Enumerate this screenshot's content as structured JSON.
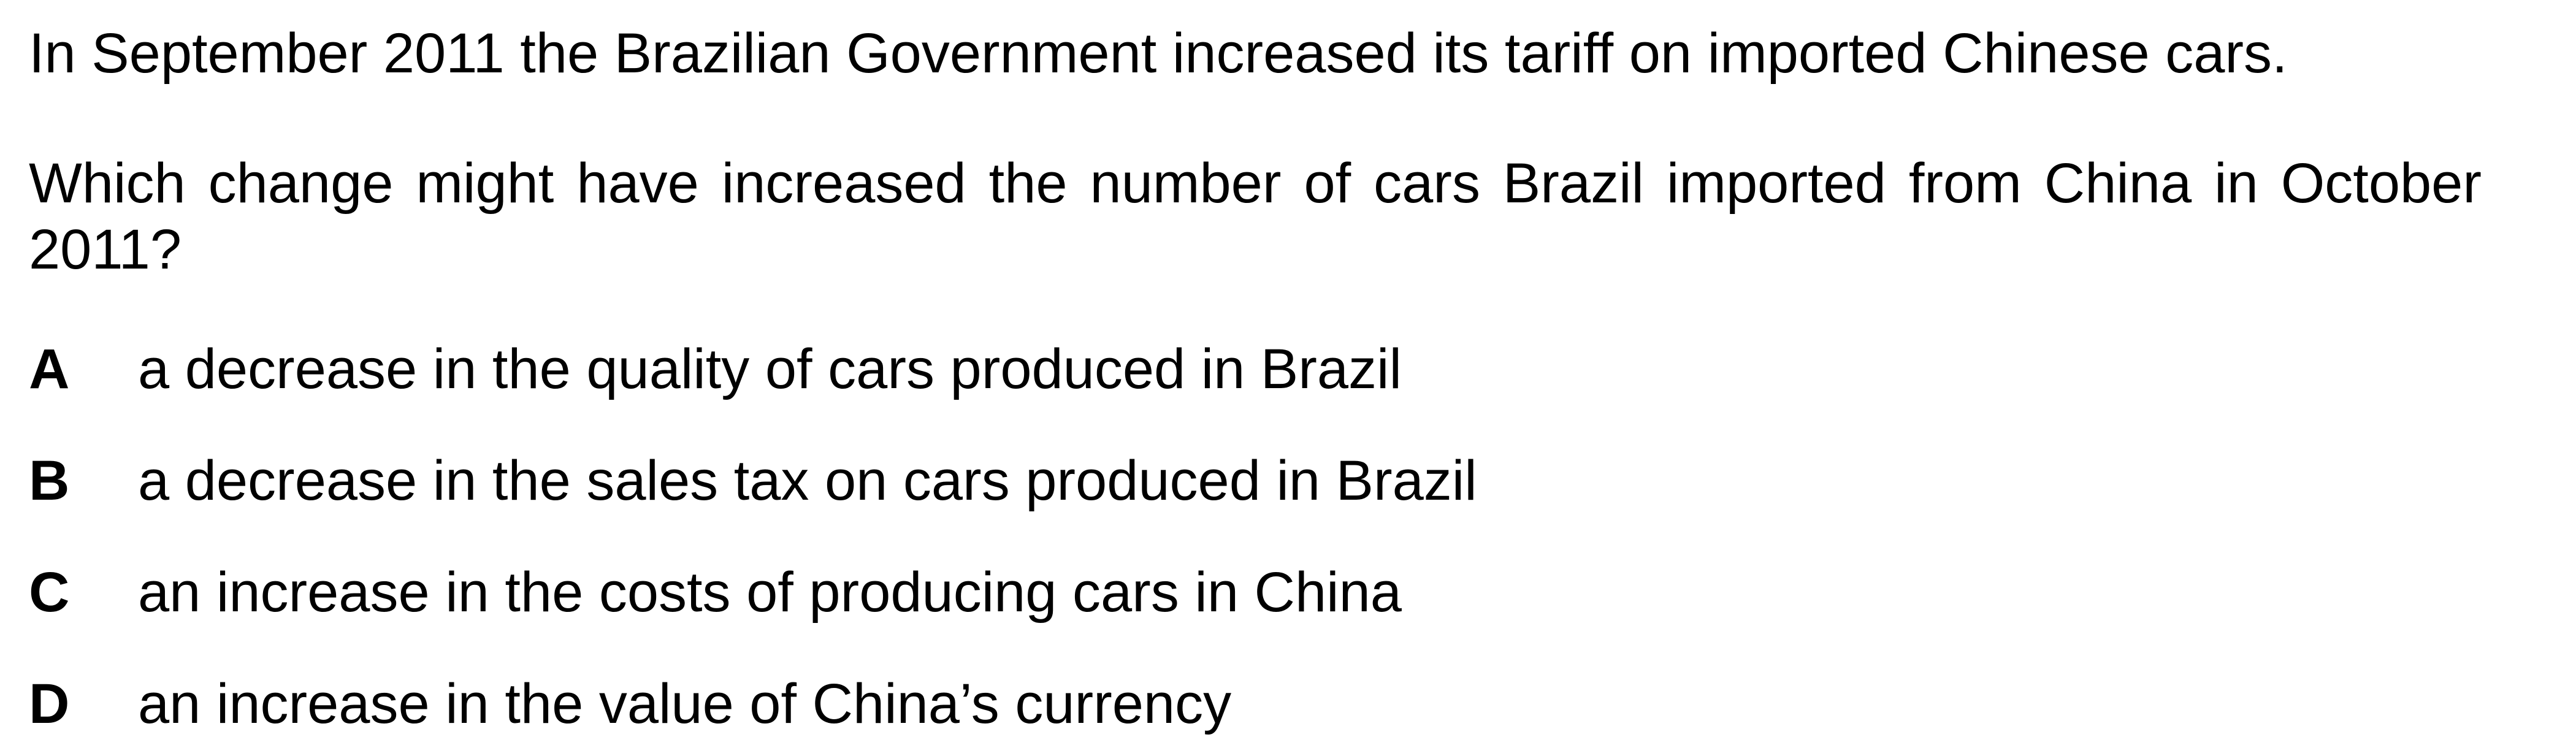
{
  "question": {
    "intro": "In September 2011 the Brazilian Government increased its tariff on imported Chinese cars.",
    "prompt": "Which change might have increased the number of cars Brazil imported from China in October 2011?"
  },
  "options": [
    {
      "letter": "A",
      "text": "a decrease in the quality of cars produced in Brazil"
    },
    {
      "letter": "B",
      "text": "a decrease in the sales tax on cars produced in Brazil"
    },
    {
      "letter": "C",
      "text": "an increase in the costs of producing cars in China"
    },
    {
      "letter": "D",
      "text": "an increase in the value of China’s currency"
    }
  ]
}
